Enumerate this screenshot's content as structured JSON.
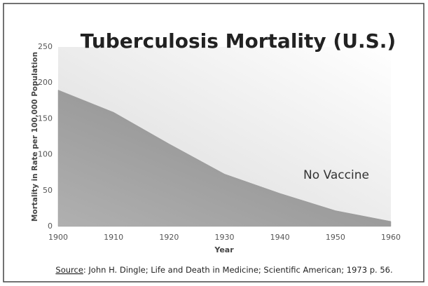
{
  "chart_data": {
    "type": "area",
    "title": "Tuberculosis Mortality (U.S.)",
    "x_label": "Year",
    "y_label": "Mortality in Rate per 100,000 Population",
    "x": [
      1900,
      1910,
      1920,
      1930,
      1940,
      1950,
      1960
    ],
    "values": [
      190,
      159,
      115,
      73,
      46,
      22,
      7
    ],
    "color": "#9a9a9a",
    "xlim": [
      1900,
      1960
    ],
    "xticks": [
      1900,
      1910,
      1920,
      1930,
      1940,
      1950,
      1960
    ],
    "ylim": [
      0,
      250
    ],
    "yticks": [
      0,
      50,
      100,
      150,
      200,
      250
    ],
    "annotation": "No Vaccine",
    "source": {
      "label": "Source",
      "text": ": John H. Dingle; Life and Death in Medicine; Scientific American; 1973 p. 56."
    }
  }
}
